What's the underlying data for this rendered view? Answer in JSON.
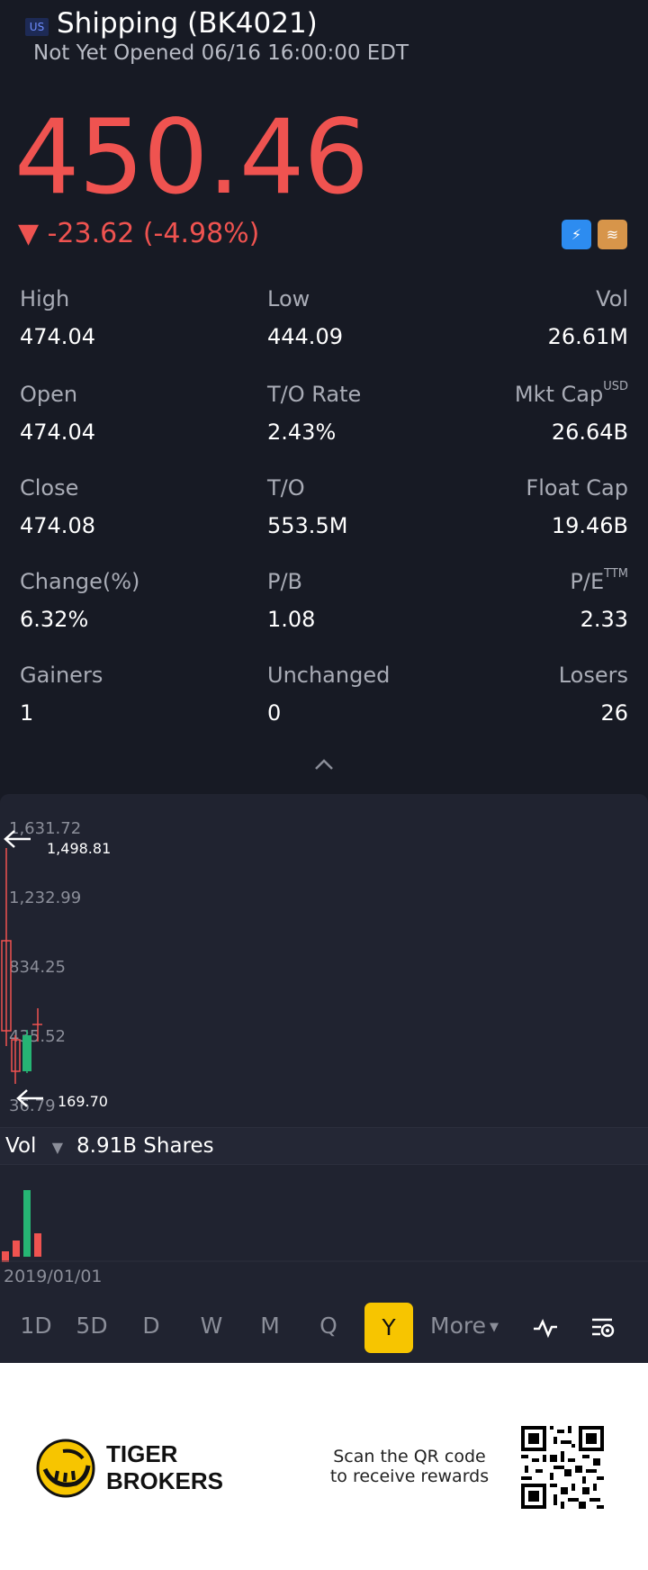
{
  "header": {
    "market_badge": "US",
    "title": "Shipping (BK4021)",
    "status": "Not Yet Opened 06/16 16:00:00 EDT"
  },
  "quote": {
    "price": "450.46",
    "change": "▼ -23.62 (-4.98%)"
  },
  "stats": {
    "high_label": "High",
    "high": "474.04",
    "low_label": "Low",
    "low": "444.09",
    "vol_label": "Vol",
    "vol": "26.61M",
    "open_label": "Open",
    "open": "474.04",
    "to_rate_label": "T/O Rate",
    "to_rate": "2.43%",
    "mkt_cap_label": "Mkt Cap",
    "mkt_cap_sup": "USD",
    "mkt_cap": "26.64B",
    "close_label": "Close",
    "close": "474.08",
    "to_label": "T/O",
    "to": "553.5M",
    "float_cap_label": "Float Cap",
    "float_cap": "19.46B",
    "change_pct_label": "Change(%)",
    "change_pct": "6.32%",
    "pb_label": "P/B",
    "pb": "1.08",
    "pe_label": "P/E",
    "pe_sup": "TTM",
    "pe": "2.33",
    "gainers_label": "Gainers",
    "gainers": "1",
    "unchanged_label": "Unchanged",
    "unchanged": "0",
    "losers_label": "Losers",
    "losers": "26"
  },
  "chart": {
    "y_ticks": [
      "1,631.72",
      "1,232.99",
      "834.25",
      "435.52",
      "36.79"
    ],
    "high_marker": "1,498.81",
    "low_marker": "169.70",
    "volume_label": "Vol",
    "volume_value": "8.91B Shares",
    "date_label": "2019/01/01",
    "colors": {
      "up": "#26b574",
      "down": "#ef5350"
    }
  },
  "periods": [
    "1D",
    "5D",
    "D",
    "W",
    "M",
    "Q",
    "Y"
  ],
  "active_period": "Y",
  "more_label": "More",
  "footer": {
    "brand_line1": "TIGER",
    "brand_line2": "BROKERS",
    "scan_line1": "Scan the QR code",
    "scan_line2": "to receive rewards"
  }
}
